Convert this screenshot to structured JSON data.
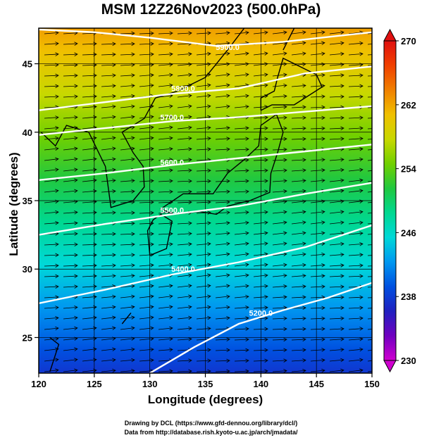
{
  "title": "MSM 12Z26Nov2023 (500.0hPa)",
  "map": {
    "xaxis": {
      "label": "Longitude (degrees)",
      "range": [
        120,
        150
      ],
      "ticks": [
        120,
        125,
        130,
        135,
        140,
        145,
        150
      ],
      "tick_labels": [
        "120",
        "125",
        "130",
        "135",
        "140",
        "145",
        "150"
      ]
    },
    "yaxis": {
      "label": "Latitude  (degrees)",
      "range": [
        22.4,
        47.6
      ],
      "ticks": [
        25,
        30,
        35,
        40,
        45
      ],
      "tick_labels": [
        "25",
        "30",
        "35",
        "40",
        "45"
      ]
    },
    "grid": true,
    "field": "temperature",
    "colorbar": {
      "min": 230,
      "max": 270,
      "ticks": [
        230,
        238,
        246,
        254,
        262,
        270
      ],
      "tick_labels": [
        "230",
        "238",
        "246",
        "254",
        "262",
        "270"
      ],
      "placement": "right",
      "colors": [
        "#d000d0",
        "#7000c0",
        "#2020c0",
        "#0050e0",
        "#0098f0",
        "#00d8d8",
        "#00d890",
        "#20c840",
        "#70d000",
        "#c8d800",
        "#f0c000",
        "#f08000",
        "#f04000",
        "#e01010"
      ]
    },
    "contours": {
      "color": "#ffffff",
      "levels": [
        5200,
        5400,
        5500,
        5600,
        5700,
        5800,
        5900
      ],
      "labels": [
        "5200.0",
        "5400.0",
        "5500.0",
        "5600.0",
        "5700.0",
        "5800.0",
        "5900.0"
      ]
    },
    "vectors": {
      "color": "#000000",
      "type": "wind-arrows"
    },
    "coastline_color": "#000000"
  },
  "credits": {
    "line1": "Drawing by DCL (https://www.gfd-dennou.org/library/dcl/)",
    "line2": "Data from http://database.rish.kyoto-u.ac.jp/arch/jmadata/"
  }
}
